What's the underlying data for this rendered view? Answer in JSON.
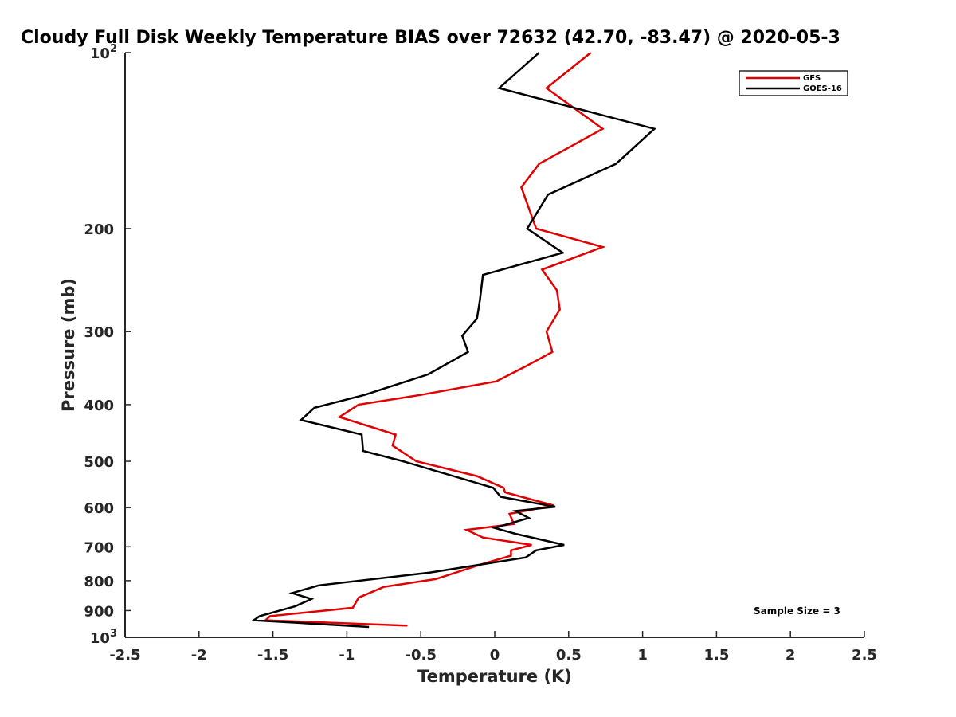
{
  "chart_data": {
    "type": "line",
    "title": "Cloudy Full Disk Weekly Temperature BIAS over 72632 (42.70, -83.47) @ 2020-05-3",
    "xlabel": "Temperature (K)",
    "ylabel": "Pressure (mb)",
    "xlim": [
      -2.5,
      2.5
    ],
    "ylim": [
      100,
      1000
    ],
    "yscale": "log",
    "y_reversed": true,
    "x_ticks": [
      "-2.5",
      "-2",
      "-1.5",
      "-1",
      "-0.5",
      "0",
      "0.5",
      "1",
      "1.5",
      "2",
      "2.5"
    ],
    "y_ticks": [
      {
        "value": 100,
        "base": "10",
        "exp": "2"
      },
      {
        "value": 200,
        "label": "200"
      },
      {
        "value": 300,
        "label": "300"
      },
      {
        "value": 400,
        "label": "400"
      },
      {
        "value": 500,
        "label": "500"
      },
      {
        "value": 600,
        "label": "600"
      },
      {
        "value": 700,
        "label": "700"
      },
      {
        "value": 800,
        "label": "800"
      },
      {
        "value": 900,
        "label": "900"
      },
      {
        "value": 1000,
        "base": "10",
        "exp": "3"
      }
    ],
    "legend_position": "top-right",
    "annotation": "Sample Size = 3",
    "series": [
      {
        "name": "GFS",
        "color": "#e00000",
        "points": [
          [
            0.65,
            100
          ],
          [
            0.35,
            115
          ],
          [
            0.73,
            135
          ],
          [
            0.3,
            155
          ],
          [
            0.18,
            170
          ],
          [
            0.28,
            200
          ],
          [
            0.73,
            215
          ],
          [
            0.32,
            235
          ],
          [
            0.42,
            255
          ],
          [
            0.44,
            275
          ],
          [
            0.35,
            300
          ],
          [
            0.39,
            325
          ],
          [
            0.2,
            345
          ],
          [
            0.01,
            365
          ],
          [
            -0.5,
            385
          ],
          [
            -0.92,
            400
          ],
          [
            -1.05,
            420
          ],
          [
            -0.67,
            450
          ],
          [
            -0.69,
            470
          ],
          [
            -0.53,
            500
          ],
          [
            -0.12,
            530
          ],
          [
            0.06,
            555
          ],
          [
            0.07,
            565
          ],
          [
            0.4,
            595
          ],
          [
            0.1,
            615
          ],
          [
            0.13,
            640
          ],
          [
            -0.19,
            655
          ],
          [
            -0.08,
            675
          ],
          [
            0.25,
            695
          ],
          [
            0.11,
            710
          ],
          [
            0.11,
            725
          ],
          [
            -0.09,
            750
          ],
          [
            -0.4,
            795
          ],
          [
            -0.75,
            820
          ],
          [
            -0.92,
            855
          ],
          [
            -0.96,
            890
          ],
          [
            -1.52,
            920
          ],
          [
            -1.55,
            935
          ],
          [
            -0.59,
            955
          ]
        ]
      },
      {
        "name": "GOES-16",
        "color": "#000000",
        "points": [
          [
            0.3,
            100
          ],
          [
            0.03,
            115
          ],
          [
            1.08,
            135
          ],
          [
            0.82,
            155
          ],
          [
            0.36,
            175
          ],
          [
            0.22,
            200
          ],
          [
            0.46,
            220
          ],
          [
            -0.08,
            240
          ],
          [
            -0.1,
            265
          ],
          [
            -0.12,
            285
          ],
          [
            -0.22,
            305
          ],
          [
            -0.18,
            325
          ],
          [
            -0.45,
            355
          ],
          [
            -0.88,
            385
          ],
          [
            -1.22,
            405
          ],
          [
            -1.31,
            425
          ],
          [
            -0.9,
            450
          ],
          [
            -0.89,
            480
          ],
          [
            -0.62,
            500
          ],
          [
            -0.01,
            555
          ],
          [
            0.04,
            575
          ],
          [
            0.41,
            598
          ],
          [
            0.14,
            608
          ],
          [
            0.23,
            625
          ],
          [
            0.0,
            650
          ],
          [
            0.14,
            665
          ],
          [
            0.47,
            695
          ],
          [
            0.28,
            710
          ],
          [
            0.21,
            730
          ],
          [
            -0.44,
            775
          ],
          [
            -1.19,
            815
          ],
          [
            -1.37,
            840
          ],
          [
            -1.24,
            860
          ],
          [
            -1.35,
            885
          ],
          [
            -1.59,
            920
          ],
          [
            -1.63,
            935
          ],
          [
            -0.85,
            960
          ]
        ]
      }
    ]
  }
}
